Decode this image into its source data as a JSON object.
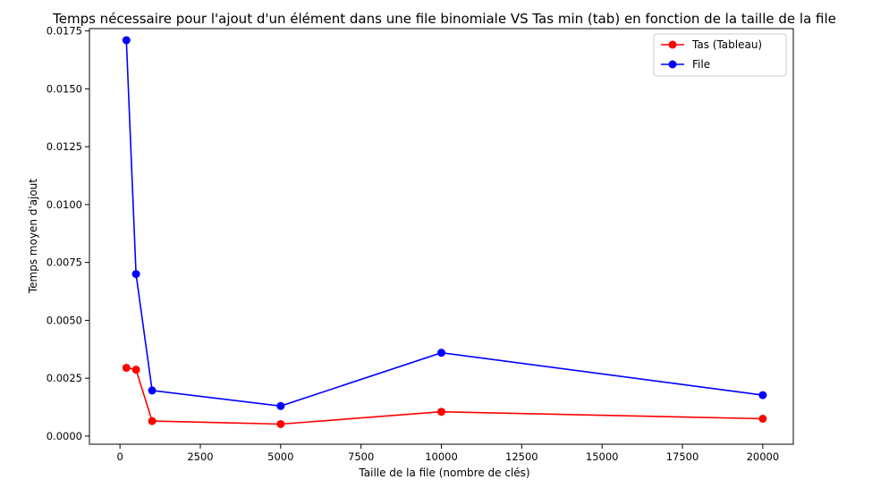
{
  "chart_data": {
    "type": "line",
    "title": "Temps nécessaire pour l'ajout d'un élément dans une file binomiale VS Tas min (tab) en fonction de la taille de la file",
    "xlabel": "Taille de la file (nombre de clés)",
    "ylabel": "Temps moyen d'ajout",
    "xlim": [
      -950,
      20950
    ],
    "ylim": [
      -0.00035,
      0.0176
    ],
    "xticks": [
      0,
      2500,
      5000,
      7500,
      10000,
      12500,
      15000,
      17500,
      20000
    ],
    "yticks": [
      0.0,
      0.0025,
      0.005,
      0.0075,
      0.01,
      0.0125,
      0.015,
      0.0175
    ],
    "xtick_labels": [
      "0",
      "2500",
      "5000",
      "7500",
      "10000",
      "12500",
      "15000",
      "17500",
      "20000"
    ],
    "ytick_labels": [
      "0.0000",
      "0.0025",
      "0.0050",
      "0.0075",
      "0.0100",
      "0.0125",
      "0.0150",
      "0.0175"
    ],
    "grid": false,
    "legend_position": "top-right",
    "series": [
      {
        "name": "Tas (Tableau)",
        "color": "#ff0000",
        "marker": "circle",
        "x": [
          200,
          500,
          1000,
          5000,
          10000,
          20000
        ],
        "y": [
          0.00295,
          0.00287,
          0.00065,
          0.00052,
          0.00105,
          0.00075
        ]
      },
      {
        "name": "File",
        "color": "#0000ff",
        "marker": "circle",
        "x": [
          200,
          500,
          1000,
          5000,
          10000,
          20000
        ],
        "y": [
          0.0171,
          0.007,
          0.00197,
          0.0013,
          0.0036,
          0.00177
        ]
      }
    ]
  }
}
